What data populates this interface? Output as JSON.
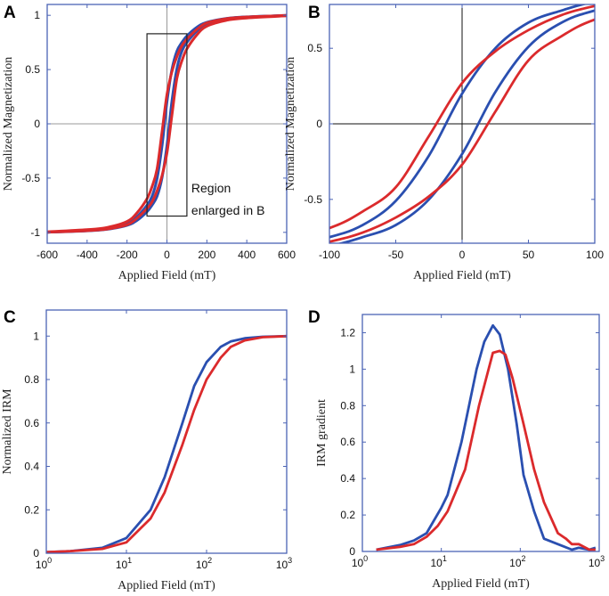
{
  "colors": {
    "blue": "#2a4fb0",
    "red": "#db2a2c",
    "frame": "#4b63b5"
  },
  "chart_data": [
    {
      "panel": "A",
      "type": "line",
      "xlabel": "Applied Field (mT)",
      "ylabel": "Normalized Magnetization",
      "xlim": [
        -600,
        600
      ],
      "ylim": [
        -1.1,
        1.1
      ],
      "xticks": [
        -600,
        -400,
        -200,
        0,
        200,
        400,
        600
      ],
      "yticks": [
        -1,
        -0.5,
        0,
        0.5,
        1
      ],
      "zero_lines": true,
      "annotation": {
        "lines": [
          "Region",
          "enlarged in B"
        ],
        "box_x": [
          -100,
          100
        ],
        "box_y": [
          -0.85,
          0.83
        ]
      },
      "x": [
        -600,
        -400,
        -300,
        -200,
        -150,
        -100,
        -75,
        -50,
        -25,
        0,
        25,
        50,
        75,
        100,
        150,
        200,
        300,
        400,
        600
      ],
      "series": [
        {
          "name": "blue-upper",
          "color": "blue",
          "values": [
            -0.998,
            -0.984,
            -0.968,
            -0.92,
            -0.855,
            -0.75,
            -0.67,
            -0.51,
            -0.21,
            0.2,
            0.5,
            0.67,
            0.75,
            0.81,
            0.89,
            0.935,
            0.972,
            0.986,
            0.999
          ]
        },
        {
          "name": "blue-lower",
          "color": "blue",
          "values": [
            -0.999,
            -0.986,
            -0.972,
            -0.935,
            -0.89,
            -0.81,
            -0.75,
            -0.67,
            -0.5,
            -0.2,
            0.21,
            0.51,
            0.67,
            0.75,
            0.855,
            0.92,
            0.968,
            0.984,
            0.998
          ]
        },
        {
          "name": "red-upper",
          "color": "red",
          "values": [
            -0.995,
            -0.975,
            -0.955,
            -0.9,
            -0.82,
            -0.69,
            -0.58,
            -0.42,
            -0.08,
            0.27,
            0.48,
            0.62,
            0.72,
            0.78,
            0.87,
            0.93,
            0.97,
            0.985,
            0.999
          ]
        },
        {
          "name": "red-lower",
          "color": "red",
          "values": [
            -0.999,
            -0.985,
            -0.97,
            -0.93,
            -0.87,
            -0.78,
            -0.72,
            -0.62,
            -0.48,
            -0.27,
            0.08,
            0.42,
            0.58,
            0.69,
            0.82,
            0.9,
            0.955,
            0.975,
            0.995
          ]
        }
      ]
    },
    {
      "panel": "B",
      "type": "line",
      "xlabel": "Applied Field (mT)",
      "ylabel": "Normalized Magnetization",
      "xlim": [
        -100,
        100
      ],
      "ylim": [
        -0.79,
        0.79
      ],
      "xticks": [
        -100,
        -50,
        0,
        50,
        100
      ],
      "yticks": [
        -0.5,
        0,
        0.5
      ],
      "zero_lines": true,
      "x": [
        -150,
        -100,
        -75,
        -50,
        -25,
        0,
        25,
        50,
        75,
        100,
        150
      ],
      "series": [
        {
          "name": "blue-upper",
          "color": "blue",
          "values": [
            -0.855,
            -0.75,
            -0.67,
            -0.51,
            -0.21,
            0.2,
            0.5,
            0.67,
            0.75,
            0.81,
            0.89
          ]
        },
        {
          "name": "blue-lower",
          "color": "blue",
          "values": [
            -0.89,
            -0.81,
            -0.75,
            -0.67,
            -0.5,
            -0.2,
            0.21,
            0.51,
            0.67,
            0.75,
            0.855
          ]
        },
        {
          "name": "red-upper",
          "color": "red",
          "values": [
            -0.82,
            -0.69,
            -0.58,
            -0.42,
            -0.08,
            0.27,
            0.48,
            0.62,
            0.72,
            0.78,
            0.87
          ]
        },
        {
          "name": "red-lower",
          "color": "red",
          "values": [
            -0.87,
            -0.78,
            -0.72,
            -0.62,
            -0.48,
            -0.27,
            0.08,
            0.42,
            0.58,
            0.69,
            0.82
          ]
        }
      ]
    },
    {
      "panel": "C",
      "type": "line",
      "xscale": "log",
      "xlabel": "Applied Field (mT)",
      "ylabel": "Normalized IRM",
      "xlim": [
        1,
        1000
      ],
      "ylim": [
        0,
        1.12
      ],
      "xticks": [
        {
          "base": "10",
          "exp": "0",
          "value": 1
        },
        {
          "base": "10",
          "exp": "1",
          "value": 10
        },
        {
          "base": "10",
          "exp": "2",
          "value": 100
        },
        {
          "base": "10",
          "exp": "3",
          "value": 1000
        }
      ],
      "yticks": [
        0,
        0.2,
        0.4,
        0.6,
        0.8,
        1
      ],
      "series": [
        {
          "name": "blue",
          "color": "blue",
          "x": [
            1,
            2,
            5,
            10,
            20,
            30,
            50,
            70,
            100,
            150,
            200,
            300,
            500,
            1000
          ],
          "values": [
            0.005,
            0.01,
            0.025,
            0.07,
            0.2,
            0.35,
            0.6,
            0.77,
            0.88,
            0.95,
            0.975,
            0.99,
            0.997,
            1
          ]
        },
        {
          "name": "red",
          "color": "red",
          "x": [
            1,
            2,
            5,
            10,
            20,
            30,
            50,
            70,
            100,
            150,
            200,
            300,
            500,
            1000
          ],
          "values": [
            0.005,
            0.01,
            0.02,
            0.05,
            0.16,
            0.28,
            0.5,
            0.66,
            0.8,
            0.9,
            0.95,
            0.98,
            0.995,
            1
          ]
        }
      ]
    },
    {
      "panel": "D",
      "type": "line",
      "xscale": "log",
      "xlabel": "Applied Field (mT)",
      "ylabel": "IRM gradient",
      "xlim": [
        1,
        1000
      ],
      "ylim": [
        0,
        1.3
      ],
      "xticks": [
        {
          "base": "10",
          "exp": "0",
          "value": 1
        },
        {
          "base": "10",
          "exp": "1",
          "value": 10
        },
        {
          "base": "10",
          "exp": "2",
          "value": 100
        },
        {
          "base": "10",
          "exp": "3",
          "value": 1000
        }
      ],
      "yticks": [
        0,
        0.2,
        0.4,
        0.6,
        0.8,
        1,
        1.2
      ],
      "series": [
        {
          "name": "blue",
          "color": "blue",
          "x": [
            1.5,
            3,
            4.5,
            6.5,
            10,
            12,
            18,
            28,
            35,
            45,
            55,
            70,
            90,
            110,
            150,
            200,
            300,
            450,
            550,
            750,
            900
          ],
          "values": [
            0.01,
            0.035,
            0.06,
            0.1,
            0.24,
            0.31,
            0.6,
            1.0,
            1.15,
            1.24,
            1.19,
            1.0,
            0.7,
            0.42,
            0.22,
            0.07,
            0.04,
            0.01,
            0.02,
            0.01,
            0.02
          ]
        },
        {
          "name": "red",
          "color": "red",
          "x": [
            1.5,
            3,
            4.5,
            6.5,
            9,
            12,
            20,
            30,
            45,
            55,
            65,
            80,
            110,
            150,
            200,
            300,
            380,
            450,
            550,
            750,
            900
          ],
          "values": [
            0.01,
            0.025,
            0.04,
            0.08,
            0.14,
            0.22,
            0.45,
            0.8,
            1.09,
            1.1,
            1.08,
            0.95,
            0.7,
            0.45,
            0.27,
            0.1,
            0.07,
            0.04,
            0.04,
            0.01,
            0.01
          ]
        }
      ]
    }
  ]
}
